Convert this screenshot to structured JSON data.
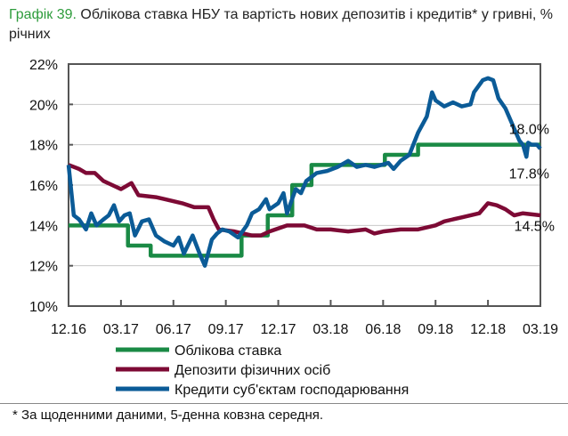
{
  "title": {
    "number": "Графік 39.",
    "text": " Облікова ставка НБУ та вартість нових депозитів і кредитів* у гривні, % річних"
  },
  "footnote": "* За щоденними даними, 5-денна ковзна середня.",
  "chart_data": {
    "type": "line",
    "title": "Облікова ставка НБУ та вартість нових депозитів і кредитів* у гривні, % річних",
    "xlabel": "",
    "ylabel": "",
    "x_unit": "months since 12.2016",
    "xlim": [
      0,
      27
    ],
    "ylim": [
      10,
      22
    ],
    "yticks": [
      "10%",
      "12%",
      "14%",
      "16%",
      "18%",
      "20%",
      "22%"
    ],
    "ytick_values": [
      10,
      12,
      14,
      16,
      18,
      20,
      22
    ],
    "xticks": [
      "12.16",
      "03.17",
      "06.17",
      "09.17",
      "12.17",
      "03.18",
      "06.18",
      "09.18",
      "12.18",
      "03.19"
    ],
    "xtick_values": [
      0,
      3,
      6,
      9,
      12,
      15,
      18,
      21,
      24,
      27
    ],
    "grid": true,
    "legend": "bottom",
    "annotations": [
      {
        "text": "18.0%",
        "x": 25.2,
        "y": 18.8
      },
      {
        "text": "17.8%",
        "x": 25.2,
        "y": 16.6
      },
      {
        "text": "14.5%",
        "x": 25.5,
        "y": 14.0
      }
    ],
    "series": [
      {
        "name": "Облікова ставка",
        "color": "#1a8a45",
        "step": true,
        "x": [
          0,
          3.4,
          4.7,
          9.9,
          11.4,
          12.8,
          13.9,
          18.1,
          20.0,
          27
        ],
        "y": [
          14,
          13,
          12.5,
          13.5,
          14.5,
          16,
          17,
          17.5,
          18,
          18
        ]
      },
      {
        "name": "Депозити фізичних осіб",
        "color": "#7d0a35",
        "x": [
          0,
          0.6,
          1,
          1.5,
          2,
          2.5,
          3,
          3.6,
          4,
          5,
          5.5,
          6.5,
          7.2,
          8,
          8.3,
          8.6,
          9.5,
          10.5,
          11,
          11.5,
          12.5,
          13.5,
          14.2,
          15,
          16,
          17,
          17.5,
          18,
          19,
          20,
          21,
          21.5,
          22.5,
          23.5,
          24,
          24.5,
          25,
          25.5,
          26,
          27
        ],
        "y": [
          17,
          16.8,
          16.6,
          16.6,
          16.2,
          16,
          15.8,
          16.1,
          15.5,
          15.4,
          15.3,
          15.1,
          14.9,
          14.9,
          14.3,
          13.8,
          13.7,
          13.5,
          13.5,
          13.7,
          14.0,
          14.0,
          13.8,
          13.8,
          13.7,
          13.8,
          13.6,
          13.7,
          13.8,
          13.8,
          14.0,
          14.2,
          14.4,
          14.6,
          15.1,
          15.0,
          14.8,
          14.5,
          14.6,
          14.5
        ]
      },
      {
        "name": "Кредити суб'єктам господарювання",
        "color": "#0b5b97",
        "x": [
          0,
          0.3,
          0.6,
          1,
          1.3,
          1.6,
          2,
          2.3,
          2.6,
          2.9,
          3.2,
          3.5,
          3.8,
          4.2,
          4.6,
          5,
          5.5,
          6,
          6.3,
          6.6,
          7.1,
          7.5,
          7.8,
          8.2,
          8.5,
          8.8,
          9.2,
          9.7,
          10.2,
          10.5,
          10.9,
          11.3,
          11.5,
          12,
          12.3,
          12.5,
          13,
          13.3,
          13.6,
          14.2,
          14.8,
          15.4,
          16,
          16.5,
          17,
          17.5,
          18.3,
          18.6,
          19,
          19.5,
          20,
          20.5,
          20.8,
          21.0,
          21.5,
          22,
          22.5,
          23,
          23.2,
          23.7,
          24.0,
          24.3,
          24.6,
          25,
          25.4,
          25.8,
          26.0,
          26.2,
          26.3,
          26.5,
          26.8,
          27
        ],
        "y": [
          17,
          14.5,
          14.3,
          13.8,
          14.6,
          14.0,
          14.3,
          14.5,
          15.0,
          14.2,
          14.5,
          14.6,
          13.5,
          14.2,
          14.3,
          13.5,
          13.2,
          13.0,
          13.4,
          12.6,
          13.5,
          12.6,
          12.0,
          13.3,
          13.6,
          13.8,
          13.7,
          13.4,
          14.0,
          14.6,
          14.8,
          15.3,
          14.8,
          15.1,
          15.6,
          14.6,
          15.8,
          15.6,
          16.2,
          16.6,
          16.7,
          16.9,
          17.2,
          16.9,
          17.0,
          16.9,
          17.1,
          16.8,
          17.2,
          17.5,
          18.6,
          19.4,
          20.6,
          20.2,
          19.9,
          20.1,
          19.9,
          20.0,
          20.6,
          21.2,
          21.3,
          21.2,
          20.3,
          19.8,
          19.0,
          18.2,
          18.0,
          17.4,
          18.1,
          18.0,
          18.0,
          17.8
        ]
      }
    ]
  }
}
